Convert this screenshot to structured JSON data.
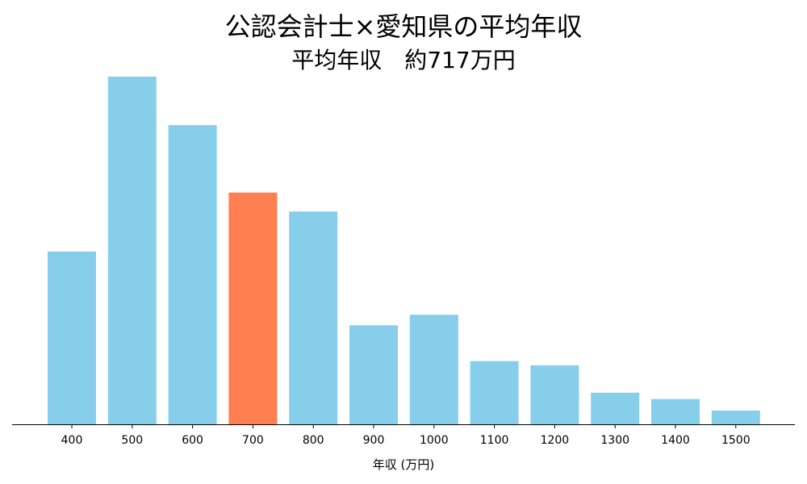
{
  "chart_data": {
    "type": "bar",
    "title": "公認会計士×愛知県の平均年収",
    "subtitle": "平均年収　約717万円",
    "xlabel": "年収 (万円)",
    "ylabel": "",
    "categories": [
      "400",
      "500",
      "600",
      "700",
      "800",
      "900",
      "1000",
      "1100",
      "1200",
      "1300",
      "1400",
      "1500"
    ],
    "values": [
      8.2,
      16.5,
      14.2,
      11.0,
      10.1,
      4.7,
      5.2,
      3.0,
      2.8,
      1.5,
      1.2,
      0.65
    ],
    "ylim": [
      0,
      16.5
    ],
    "highlight_category": "700",
    "grid": false,
    "y_axis_visible": false,
    "colors": {
      "bar": "#87CEEB",
      "highlight": "#FF7F50",
      "axis": "#000000"
    }
  }
}
